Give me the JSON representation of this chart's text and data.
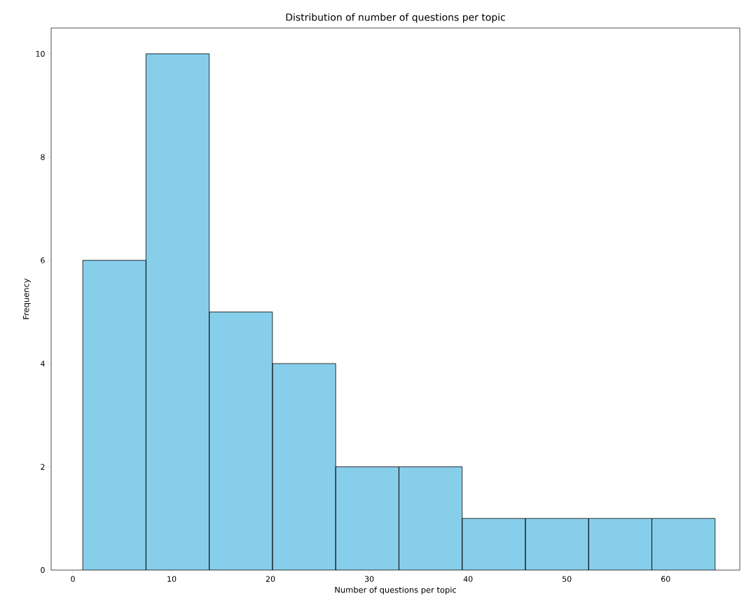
{
  "chart_data": {
    "type": "histogram",
    "title": "Distribution of number of questions per topic",
    "xlabel": "Number of questions per topic",
    "ylabel": "Frequency",
    "bins": [
      1,
      7.4,
      13.8,
      20.2,
      26.6,
      33,
      39.4,
      45.8,
      52.2,
      58.6,
      65
    ],
    "values": [
      6,
      10,
      5,
      4,
      2,
      2,
      1,
      1,
      1,
      1
    ],
    "color": "#87ceeb",
    "xlim": [
      -2.2,
      67.5
    ],
    "ylim": [
      0,
      10.5
    ],
    "xticks": [
      0,
      10,
      20,
      30,
      40,
      50,
      60
    ],
    "yticks": [
      0,
      2,
      4,
      6,
      8,
      10
    ],
    "grid": false
  }
}
